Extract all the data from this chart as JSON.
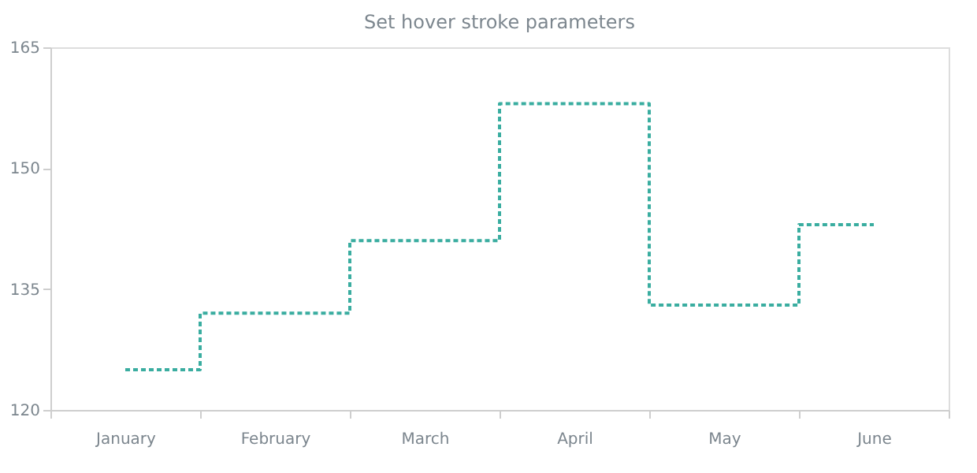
{
  "chart_data": {
    "type": "step",
    "title": "Set hover stroke parameters",
    "categories": [
      "January",
      "February",
      "March",
      "April",
      "May",
      "June"
    ],
    "series": [
      {
        "color": "#3aada0",
        "values": [
          125,
          132,
          141,
          158,
          133,
          143
        ]
      }
    ],
    "ylim": [
      120,
      165
    ],
    "yticks": [
      120,
      135,
      150,
      165
    ],
    "grid": false,
    "line_style": "dotted",
    "marker": "none"
  }
}
